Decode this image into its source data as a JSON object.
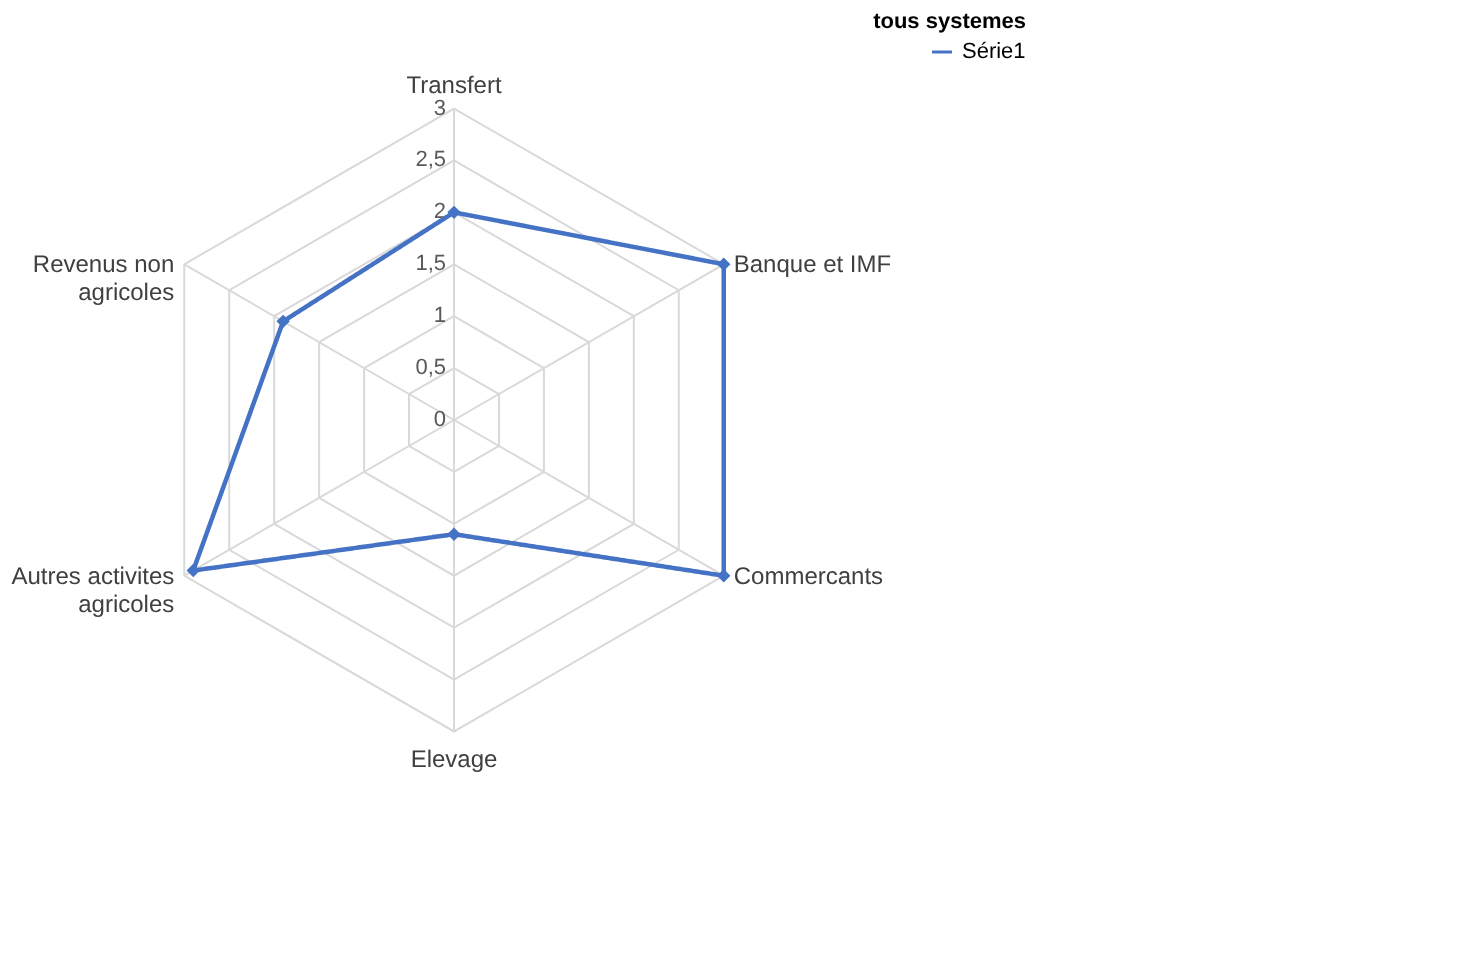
{
  "chart_data": {
    "type": "radar",
    "title": "tous systemes",
    "categories": [
      "Transfert",
      "Banque et IMF",
      "Commercants",
      "Elevage",
      "Autres activites agricoles",
      "Revenus non agricoles"
    ],
    "series": [
      {
        "name": "Série1",
        "color": "#4472c4",
        "values": [
          2,
          3,
          3,
          1.1,
          2.9,
          1.9
        ]
      }
    ],
    "ylim": [
      0,
      3
    ],
    "yticks": [
      0,
      {
        "value": 0.5,
        "label": "0,5"
      },
      1,
      {
        "value": 1.5,
        "label": "1,5"
      },
      2,
      {
        "value": 2.5,
        "label": "2,5"
      },
      3
    ],
    "grid": true,
    "legend": "right",
    "marker": "diamond",
    "line_style": "solid"
  }
}
